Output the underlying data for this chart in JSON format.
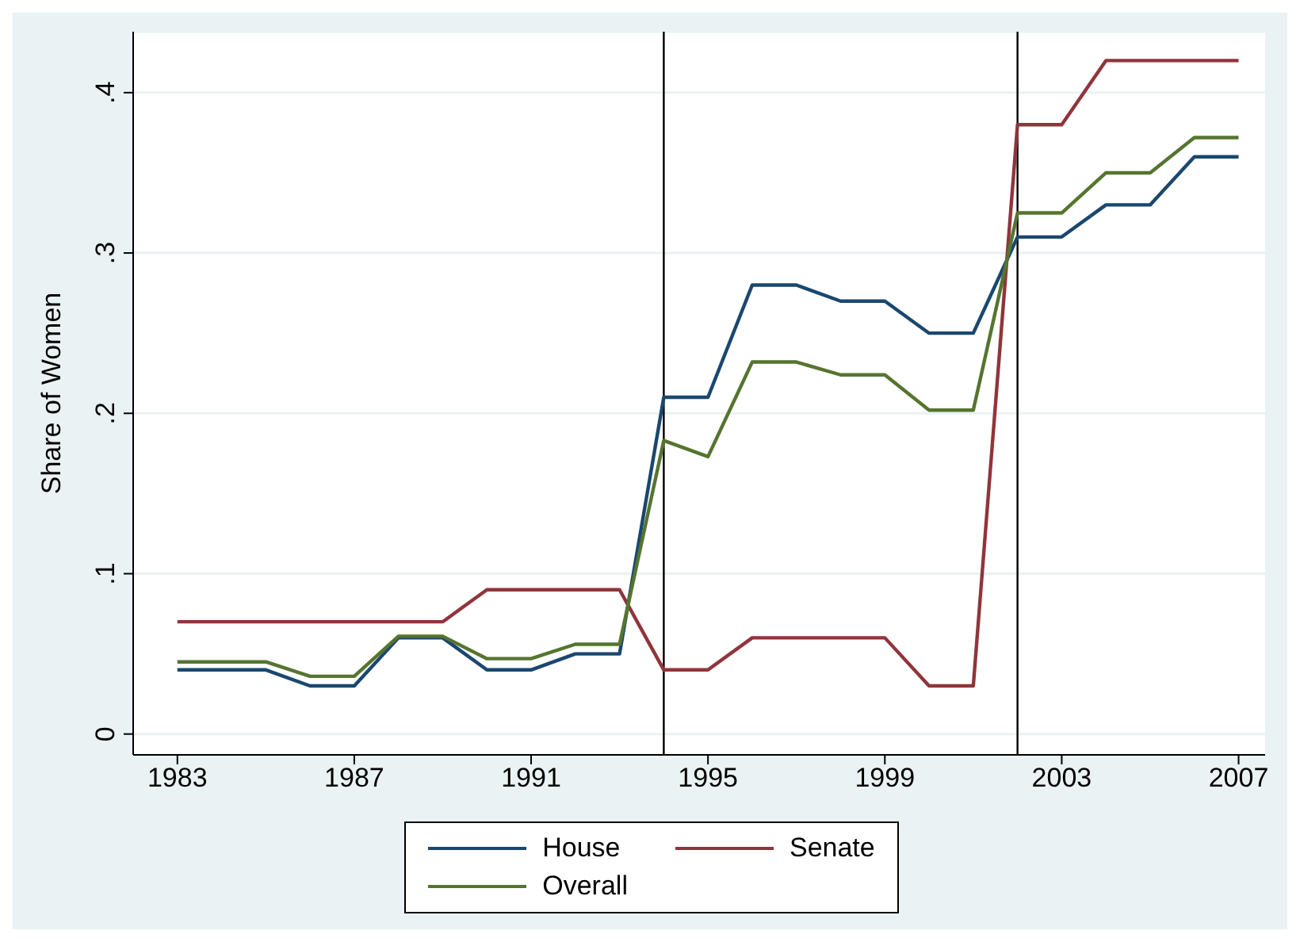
{
  "chart_data": {
    "type": "line",
    "ylabel": "Share of Women",
    "x": [
      1983,
      1984,
      1985,
      1986,
      1987,
      1988,
      1989,
      1990,
      1991,
      1992,
      1993,
      1994,
      1995,
      1996,
      1997,
      1998,
      1999,
      2000,
      2001,
      2002,
      2003,
      2004,
      2005,
      2006,
      2007
    ],
    "series": [
      {
        "name": "House",
        "color": "#1a476f",
        "values": [
          0.04,
          0.04,
          0.04,
          0.03,
          0.03,
          0.06,
          0.06,
          0.04,
          0.04,
          0.05,
          0.05,
          0.21,
          0.21,
          0.28,
          0.28,
          0.27,
          0.27,
          0.25,
          0.25,
          0.31,
          0.31,
          0.33,
          0.33,
          0.36,
          0.36
        ]
      },
      {
        "name": "Senate",
        "color": "#90353b",
        "values": [
          0.07,
          0.07,
          0.07,
          0.07,
          0.07,
          0.07,
          0.07,
          0.09,
          0.09,
          0.09,
          0.09,
          0.04,
          0.04,
          0.06,
          0.06,
          0.06,
          0.06,
          0.03,
          0.03,
          0.38,
          0.38,
          0.42,
          0.42,
          0.42,
          0.42
        ]
      },
      {
        "name": "Overall",
        "color": "#55752f",
        "values": [
          0.045,
          0.045,
          0.045,
          0.036,
          0.036,
          0.061,
          0.061,
          0.047,
          0.047,
          0.056,
          0.056,
          0.183,
          0.173,
          0.232,
          0.232,
          0.224,
          0.224,
          0.202,
          0.202,
          0.325,
          0.325,
          0.35,
          0.35,
          0.372,
          0.372
        ]
      }
    ],
    "xlim": [
      1982,
      2007.6
    ],
    "xticks": [
      1983,
      1987,
      1991,
      1995,
      1999,
      2003,
      2007
    ],
    "ylim": [
      -0.013,
      0.438
    ],
    "yticks": [
      {
        "value": 0,
        "label": "0"
      },
      {
        "value": 0.1,
        "label": ".1"
      },
      {
        "value": 0.2,
        "label": ".2"
      },
      {
        "value": 0.3,
        "label": ".3"
      },
      {
        "value": 0.4,
        "label": ".4"
      }
    ],
    "ref_lines": [
      {
        "axis": "x",
        "value": 1994,
        "color": "#000000"
      },
      {
        "axis": "x",
        "value": 2002,
        "color": "#000000"
      }
    ],
    "grid": "y",
    "legend": "bottom",
    "marker": "none",
    "line_style": "solid"
  }
}
